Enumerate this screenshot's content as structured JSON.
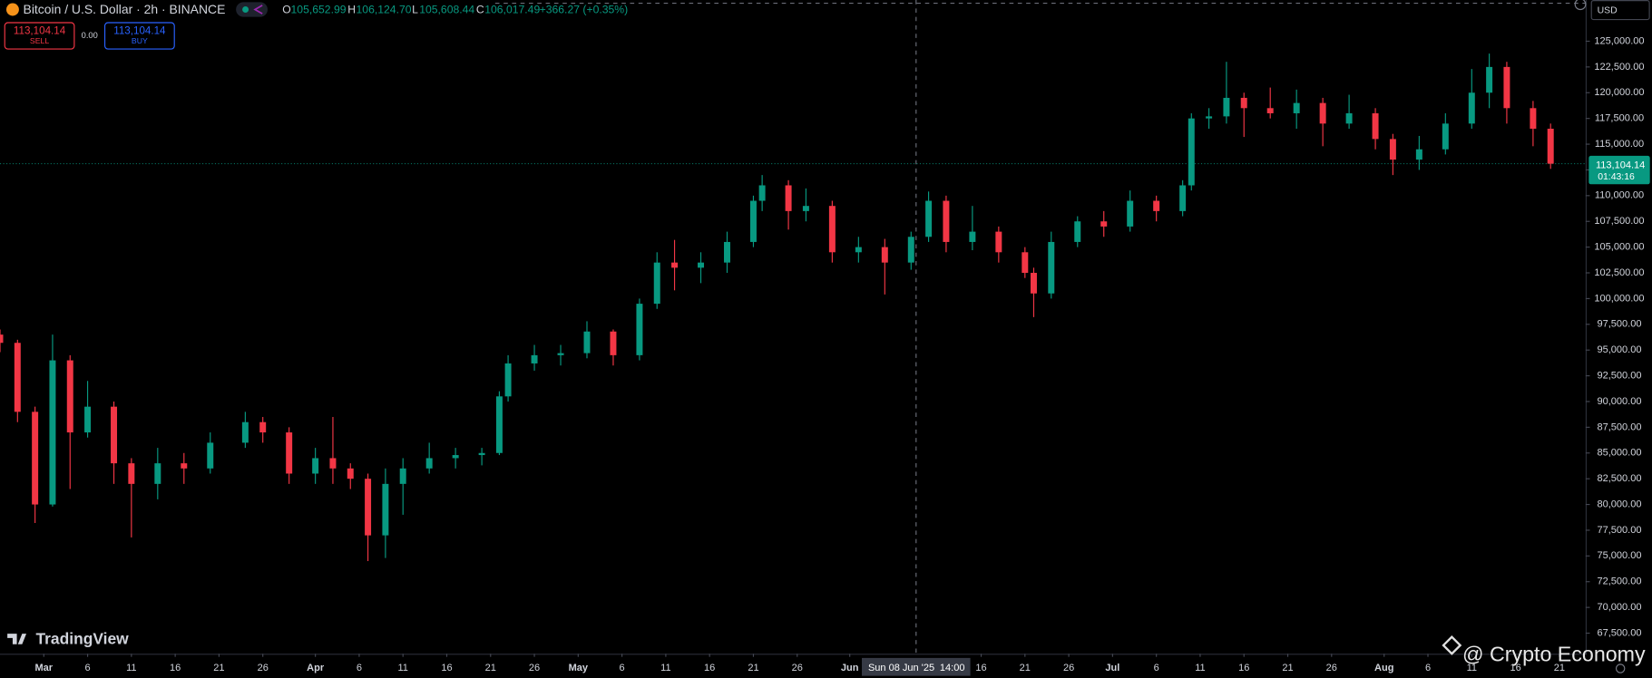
{
  "header": {
    "symbol": "Bitcoin / U.S. Dollar · 2h · BINANCE",
    "ohlc": [
      {
        "key": "O",
        "value": "105,652.99"
      },
      {
        "key": "H",
        "value": "106,124.70"
      },
      {
        "key": "L",
        "value": "105,608.44"
      },
      {
        "key": "C",
        "value": "106,017.49"
      }
    ],
    "change": "+366.27 (+0.35%)"
  },
  "trade": {
    "sell_price": "113,104.14",
    "sell": "SELL",
    "spread": "0.00",
    "buy_price": "113,104.14",
    "buy": "BUY"
  },
  "currency": "USD",
  "price_tag": {
    "price": "113,104.14",
    "countdown": "01:43:16"
  },
  "crosshair_label": "Sun 08 Jun '25",
  "crosshair_time": "14:00",
  "logo": "TradingView",
  "watermark": "@ Crypto Economy",
  "chart_data": {
    "type": "candlestick",
    "up_color": "#089981",
    "down_color": "#f23645",
    "grid": false,
    "x": [
      "2025-02-24",
      "2025-02-26",
      "2025-02-28",
      "2025-03-02",
      "2025-03-04",
      "2025-03-06",
      "2025-03-09",
      "2025-03-11",
      "2025-03-14",
      "2025-03-17",
      "2025-03-20",
      "2025-03-24",
      "2025-03-26",
      "2025-03-29",
      "2025-04-01",
      "2025-04-03",
      "2025-04-05",
      "2025-04-07",
      "2025-04-09",
      "2025-04-11",
      "2025-04-14",
      "2025-04-17",
      "2025-04-20",
      "2025-04-22",
      "2025-04-23",
      "2025-04-26",
      "2025-04-29",
      "2025-05-02",
      "2025-05-05",
      "2025-05-08",
      "2025-05-10",
      "2025-05-12",
      "2025-05-15",
      "2025-05-18",
      "2025-05-21",
      "2025-05-22",
      "2025-05-25",
      "2025-05-27",
      "2025-05-30",
      "2025-06-02",
      "2025-06-05",
      "2025-06-08",
      "2025-06-10",
      "2025-06-12",
      "2025-06-15",
      "2025-06-18",
      "2025-06-21",
      "2025-06-22",
      "2025-06-24",
      "2025-06-27",
      "2025-06-30",
      "2025-07-03",
      "2025-07-06",
      "2025-07-09",
      "2025-07-10",
      "2025-07-12",
      "2025-07-14",
      "2025-07-16",
      "2025-07-19",
      "2025-07-22",
      "2025-07-25",
      "2025-07-28",
      "2025-07-31",
      "2025-08-02",
      "2025-08-05",
      "2025-08-08",
      "2025-08-11",
      "2025-08-13",
      "2025-08-15",
      "2025-08-18",
      "2025-08-20"
    ],
    "open": [
      96500,
      95700,
      89000,
      80000,
      94000,
      87000,
      89500,
      84000,
      82000,
      84000,
      83500,
      86000,
      88000,
      87000,
      83000,
      84500,
      83500,
      82500,
      77000,
      82000,
      83500,
      84500,
      84800,
      85000,
      90500,
      93700,
      94500,
      94700,
      96800,
      94500,
      99500,
      103500,
      103000,
      103500,
      105500,
      109500,
      111000,
      108500,
      109000,
      104500,
      105000,
      103500,
      106000,
      109500,
      105500,
      106500,
      104500,
      102500,
      100500,
      105500,
      107500,
      107000,
      109500,
      108500,
      111000,
      117500,
      117700,
      119500,
      118500,
      118000,
      119000,
      117000,
      118000,
      115500,
      113500,
      114500,
      117000,
      120000,
      122500,
      118500,
      116500
    ],
    "high": [
      97000,
      96000,
      89500,
      96500,
      94500,
      92000,
      90000,
      84500,
      85500,
      85000,
      87000,
      89000,
      88500,
      87500,
      85500,
      88500,
      84000,
      83000,
      83500,
      84500,
      86000,
      85500,
      85500,
      91000,
      94500,
      95500,
      95500,
      97800,
      97000,
      100000,
      104500,
      105700,
      104500,
      106500,
      110000,
      112000,
      111500,
      110700,
      109500,
      106000,
      105800,
      106500,
      110400,
      110000,
      109000,
      107000,
      105000,
      103000,
      106500,
      108000,
      108500,
      110500,
      110000,
      111500,
      118000,
      118500,
      123000,
      120000,
      120500,
      120300,
      119500,
      119800,
      118500,
      116000,
      115800,
      118000,
      122300,
      123800,
      123000,
      119200,
      117000
    ],
    "low": [
      94800,
      88000,
      78200,
      79800,
      81500,
      86500,
      82000,
      76800,
      80500,
      82000,
      83000,
      85500,
      86000,
      82000,
      82000,
      82000,
      81500,
      74500,
      74800,
      79000,
      83000,
      83500,
      83800,
      84800,
      90000,
      93000,
      93500,
      94200,
      93500,
      94000,
      99000,
      100800,
      101500,
      102500,
      105000,
      108500,
      106700,
      107500,
      103500,
      103500,
      100400,
      102800,
      105500,
      104500,
      104700,
      103500,
      102000,
      98200,
      100000,
      105000,
      106000,
      106500,
      107500,
      108000,
      110500,
      116500,
      117000,
      115700,
      117500,
      116500,
      114800,
      116500,
      114500,
      112000,
      112500,
      114000,
      116500,
      118500,
      117000,
      114800,
      112600
    ],
    "close": [
      95700,
      89000,
      80000,
      94000,
      87000,
      89500,
      84000,
      82000,
      84000,
      83500,
      86000,
      88000,
      87000,
      83000,
      84500,
      83500,
      82500,
      77000,
      82000,
      83500,
      84500,
      84800,
      85000,
      90500,
      93700,
      94500,
      94700,
      96800,
      94500,
      99500,
      103500,
      103000,
      103500,
      105500,
      109500,
      111000,
      108500,
      109000,
      104500,
      105000,
      103500,
      106000,
      109500,
      105500,
      106500,
      104500,
      102500,
      100500,
      105500,
      107500,
      107000,
      109500,
      108500,
      111000,
      117500,
      117700,
      119500,
      118500,
      118000,
      119000,
      117000,
      118000,
      115500,
      113500,
      114500,
      117000,
      120000,
      122500,
      118500,
      116500,
      113104.14
    ],
    "xlim": [
      "2025-02-24",
      "2025-08-24"
    ],
    "xticks": [
      {
        "value": "2025-03-01",
        "label": "Mar"
      },
      {
        "value": "2025-03-06",
        "label": "6"
      },
      {
        "value": "2025-03-11",
        "label": "11"
      },
      {
        "value": "2025-03-16",
        "label": "16"
      },
      {
        "value": "2025-03-21",
        "label": "21"
      },
      {
        "value": "2025-03-26",
        "label": "26"
      },
      {
        "value": "2025-04-01",
        "label": "Apr"
      },
      {
        "value": "2025-04-06",
        "label": "6"
      },
      {
        "value": "2025-04-11",
        "label": "11"
      },
      {
        "value": "2025-04-16",
        "label": "16"
      },
      {
        "value": "2025-04-21",
        "label": "21"
      },
      {
        "value": "2025-04-26",
        "label": "26"
      },
      {
        "value": "2025-05-01",
        "label": "May"
      },
      {
        "value": "2025-05-06",
        "label": "6"
      },
      {
        "value": "2025-05-11",
        "label": "11"
      },
      {
        "value": "2025-05-16",
        "label": "16"
      },
      {
        "value": "2025-05-21",
        "label": "21"
      },
      {
        "value": "2025-05-26",
        "label": "26"
      },
      {
        "value": "2025-06-01",
        "label": "Jun"
      },
      {
        "value": "2025-06-16",
        "label": "16"
      },
      {
        "value": "2025-06-21",
        "label": "21"
      },
      {
        "value": "2025-06-26",
        "label": "26"
      },
      {
        "value": "2025-07-01",
        "label": "Jul"
      },
      {
        "value": "2025-07-06",
        "label": "6"
      },
      {
        "value": "2025-07-11",
        "label": "11"
      },
      {
        "value": "2025-07-16",
        "label": "16"
      },
      {
        "value": "2025-07-21",
        "label": "21"
      },
      {
        "value": "2025-07-26",
        "label": "26"
      },
      {
        "value": "2025-08-01",
        "label": "Aug"
      },
      {
        "value": "2025-08-06",
        "label": "6"
      },
      {
        "value": "2025-08-11",
        "label": "11"
      },
      {
        "value": "2025-08-16",
        "label": "16"
      },
      {
        "value": "2025-08-21",
        "label": "21"
      }
    ],
    "ylim": [
      65500,
      129000
    ],
    "yticks": [
      {
        "value": 67500,
        "label": "67,500.00"
      },
      {
        "value": 70000,
        "label": "70,000.00"
      },
      {
        "value": 72500,
        "label": "72,500.00"
      },
      {
        "value": 75000,
        "label": "75,000.00"
      },
      {
        "value": 77500,
        "label": "77,500.00"
      },
      {
        "value": 80000,
        "label": "80,000.00"
      },
      {
        "value": 82500,
        "label": "82,500.00"
      },
      {
        "value": 85000,
        "label": "85,000.00"
      },
      {
        "value": 87500,
        "label": "87,500.00"
      },
      {
        "value": 90000,
        "label": "90,000.00"
      },
      {
        "value": 92500,
        "label": "92,500.00"
      },
      {
        "value": 95000,
        "label": "95,000.00"
      },
      {
        "value": 97500,
        "label": "97,500.00"
      },
      {
        "value": 100000,
        "label": "100,000.00"
      },
      {
        "value": 102500,
        "label": "102,500.00"
      },
      {
        "value": 105000,
        "label": "105,000.00"
      },
      {
        "value": 107500,
        "label": "107,500.00"
      },
      {
        "value": 110000,
        "label": "110,000.00"
      },
      {
        "value": 112500,
        "label": "112,500.00"
      },
      {
        "value": 115000,
        "label": "115,000.00"
      },
      {
        "value": 117500,
        "label": "117,500.00"
      },
      {
        "value": 120000,
        "label": "120,000.00"
      },
      {
        "value": 122500,
        "label": "122,500.00"
      },
      {
        "value": 125000,
        "label": "125,000.00"
      }
    ]
  }
}
